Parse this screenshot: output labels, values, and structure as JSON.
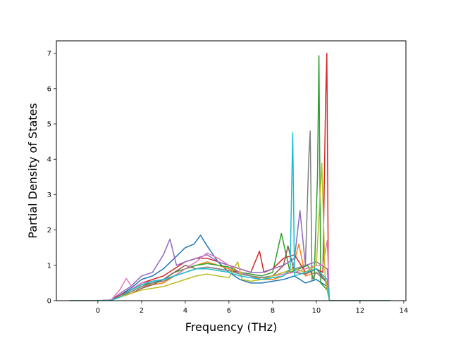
{
  "chart_data": {
    "type": "line",
    "title": "",
    "xlabel": "Frequency (THz)",
    "ylabel": "Partial Density of States",
    "xlim": [
      -1.9,
      14.1
    ],
    "ylim": [
      0,
      7.35
    ],
    "xticks": [
      0,
      2,
      4,
      6,
      8,
      10,
      12,
      14
    ],
    "yticks": [
      0,
      1,
      2,
      3,
      4,
      5,
      6,
      7
    ],
    "grid": false,
    "legend": "none",
    "data_range_x": [
      -1.3,
      13.4
    ],
    "series": [
      {
        "color": "#1f77b4",
        "x": [
          -1.3,
          0.0,
          0.6,
          1.0,
          1.5,
          2.0,
          2.5,
          3.0,
          3.5,
          4.0,
          4.4,
          4.7,
          5.0,
          5.5,
          6.0,
          6.5,
          7.0,
          7.5,
          8.0,
          8.5,
          9.0,
          9.5,
          10.0,
          10.5,
          10.6,
          13.4
        ],
        "y": [
          0,
          0,
          0.02,
          0.15,
          0.35,
          0.6,
          0.7,
          0.9,
          1.2,
          1.5,
          1.6,
          1.85,
          1.55,
          1.1,
          0.8,
          0.6,
          0.5,
          0.5,
          0.55,
          0.6,
          0.7,
          0.5,
          0.6,
          0.4,
          0,
          0
        ]
      },
      {
        "color": "#ff7f0e",
        "x": [
          -1.3,
          0.0,
          0.6,
          1.0,
          1.5,
          2.0,
          2.5,
          3.0,
          3.5,
          4.0,
          4.5,
          5.0,
          5.5,
          6.0,
          6.5,
          7.0,
          7.5,
          8.0,
          8.5,
          8.9,
          9.2,
          9.5,
          10.0,
          10.4,
          10.6,
          13.4
        ],
        "y": [
          0,
          0,
          0.01,
          0.1,
          0.25,
          0.4,
          0.45,
          0.5,
          0.7,
          0.9,
          1.0,
          1.1,
          1.0,
          0.9,
          0.8,
          0.7,
          0.6,
          0.6,
          0.7,
          0.9,
          1.6,
          0.7,
          0.8,
          0.6,
          0,
          0
        ]
      },
      {
        "color": "#2ca02c",
        "x": [
          -1.3,
          0.0,
          0.6,
          1.0,
          1.5,
          2.0,
          2.5,
          3.0,
          3.5,
          4.0,
          4.5,
          5.0,
          5.5,
          6.0,
          6.5,
          7.0,
          7.5,
          8.0,
          8.4,
          8.8,
          9.2,
          9.6,
          9.9,
          10.05,
          10.12,
          10.2,
          10.5,
          10.6,
          13.4
        ],
        "y": [
          0,
          0,
          0.01,
          0.1,
          0.3,
          0.45,
          0.5,
          0.6,
          0.8,
          0.9,
          1.0,
          1.05,
          1.0,
          0.95,
          0.8,
          0.75,
          0.7,
          0.8,
          1.9,
          0.8,
          0.9,
          1.0,
          0.6,
          3.5,
          6.93,
          0.5,
          0.3,
          0,
          0
        ]
      },
      {
        "color": "#d62728",
        "x": [
          -1.3,
          0.0,
          0.6,
          1.0,
          1.5,
          2.0,
          2.5,
          3.0,
          3.5,
          4.0,
          4.5,
          5.0,
          5.5,
          6.0,
          6.5,
          7.0,
          7.4,
          7.6,
          8.0,
          8.5,
          9.0,
          9.5,
          10.0,
          10.3,
          10.42,
          10.48,
          10.55,
          10.6,
          13.4
        ],
        "y": [
          0,
          0,
          0.02,
          0.15,
          0.3,
          0.5,
          0.6,
          0.7,
          0.9,
          1.1,
          1.2,
          1.2,
          1.1,
          1.0,
          0.9,
          0.8,
          1.4,
          0.8,
          0.9,
          1.2,
          1.3,
          0.8,
          0.9,
          0.8,
          5.5,
          7.0,
          0.4,
          0,
          0
        ]
      },
      {
        "color": "#9467bd",
        "x": [
          -1.3,
          0.0,
          0.6,
          1.0,
          1.5,
          2.0,
          2.5,
          3.0,
          3.3,
          3.6,
          4.0,
          4.5,
          5.0,
          5.5,
          6.0,
          6.5,
          7.0,
          7.5,
          8.0,
          8.5,
          9.0,
          9.25,
          9.5,
          10.0,
          10.5,
          10.6,
          13.4
        ],
        "y": [
          0,
          0,
          0.02,
          0.2,
          0.4,
          0.7,
          0.8,
          1.3,
          1.74,
          1.0,
          1.1,
          1.2,
          1.3,
          1.1,
          1.0,
          0.9,
          0.8,
          0.8,
          0.9,
          1.0,
          1.2,
          2.55,
          1.0,
          1.1,
          0.9,
          0,
          0
        ]
      },
      {
        "color": "#8c564b",
        "x": [
          -1.3,
          0.0,
          0.6,
          1.0,
          1.5,
          2.0,
          2.5,
          3.0,
          3.5,
          4.0,
          4.5,
          5.0,
          5.5,
          6.0,
          6.5,
          7.0,
          7.5,
          8.0,
          8.5,
          8.7,
          9.0,
          9.5,
          10.0,
          10.5,
          10.6,
          13.4
        ],
        "y": [
          0,
          0,
          0.01,
          0.1,
          0.2,
          0.35,
          0.45,
          0.6,
          0.8,
          1.0,
          0.9,
          0.95,
          0.9,
          0.85,
          0.8,
          0.7,
          0.65,
          0.7,
          1.0,
          1.55,
          0.8,
          0.75,
          0.9,
          0.5,
          0,
          0
        ]
      },
      {
        "color": "#e377c2",
        "x": [
          -1.3,
          0.0,
          0.6,
          1.0,
          1.3,
          1.6,
          2.0,
          2.5,
          3.0,
          3.5,
          4.0,
          4.5,
          5.0,
          5.5,
          6.0,
          6.5,
          7.0,
          7.5,
          8.0,
          8.5,
          9.0,
          9.5,
          10.0,
          10.3,
          10.5,
          10.6,
          13.4
        ],
        "y": [
          0,
          0,
          0.02,
          0.3,
          0.63,
          0.35,
          0.5,
          0.55,
          0.6,
          0.7,
          0.9,
          1.1,
          1.35,
          1.2,
          1.0,
          0.8,
          0.7,
          0.65,
          0.7,
          0.75,
          0.8,
          0.9,
          1.0,
          1.0,
          1.7,
          0,
          0
        ]
      },
      {
        "color": "#7f7f7f",
        "x": [
          -1.3,
          0.0,
          0.6,
          1.0,
          1.5,
          2.0,
          2.5,
          3.0,
          3.5,
          4.0,
          4.5,
          5.0,
          5.5,
          6.0,
          6.5,
          7.0,
          7.5,
          8.0,
          8.5,
          9.0,
          9.5,
          9.65,
          9.72,
          9.8,
          10.0,
          10.5,
          10.6,
          13.4
        ],
        "y": [
          0,
          0,
          0.01,
          0.1,
          0.25,
          0.4,
          0.5,
          0.55,
          0.7,
          0.8,
          0.9,
          0.95,
          0.9,
          0.85,
          0.75,
          0.7,
          0.65,
          0.7,
          0.8,
          0.9,
          1.0,
          4.0,
          4.8,
          0.6,
          0.8,
          0.5,
          0,
          0
        ]
      },
      {
        "color": "#bcbd22",
        "x": [
          -1.3,
          0.0,
          0.6,
          1.0,
          1.5,
          2.0,
          2.5,
          3.0,
          3.5,
          4.0,
          4.5,
          5.0,
          5.5,
          6.0,
          6.4,
          6.6,
          7.0,
          7.5,
          8.0,
          8.5,
          9.0,
          9.5,
          10.0,
          10.25,
          10.4,
          10.6,
          13.4
        ],
        "y": [
          0,
          0,
          0.01,
          0.1,
          0.2,
          0.3,
          0.35,
          0.4,
          0.5,
          0.6,
          0.7,
          0.75,
          0.7,
          0.65,
          1.1,
          0.6,
          0.55,
          0.6,
          0.7,
          0.8,
          0.9,
          0.8,
          1.0,
          3.9,
          0.7,
          0,
          0
        ]
      },
      {
        "color": "#17becf",
        "x": [
          -1.3,
          0.0,
          0.6,
          1.0,
          1.5,
          2.0,
          2.5,
          3.0,
          3.5,
          4.0,
          4.5,
          5.0,
          5.5,
          6.0,
          6.5,
          7.0,
          7.5,
          8.0,
          8.5,
          8.8,
          8.92,
          9.0,
          9.5,
          10.0,
          10.5,
          10.6,
          13.4
        ],
        "y": [
          0,
          0,
          0.01,
          0.1,
          0.3,
          0.45,
          0.55,
          0.6,
          0.7,
          0.8,
          0.9,
          0.9,
          0.85,
          0.8,
          0.7,
          0.65,
          0.6,
          0.65,
          0.7,
          0.9,
          4.75,
          0.7,
          0.8,
          0.9,
          0.6,
          0,
          0
        ]
      }
    ]
  }
}
